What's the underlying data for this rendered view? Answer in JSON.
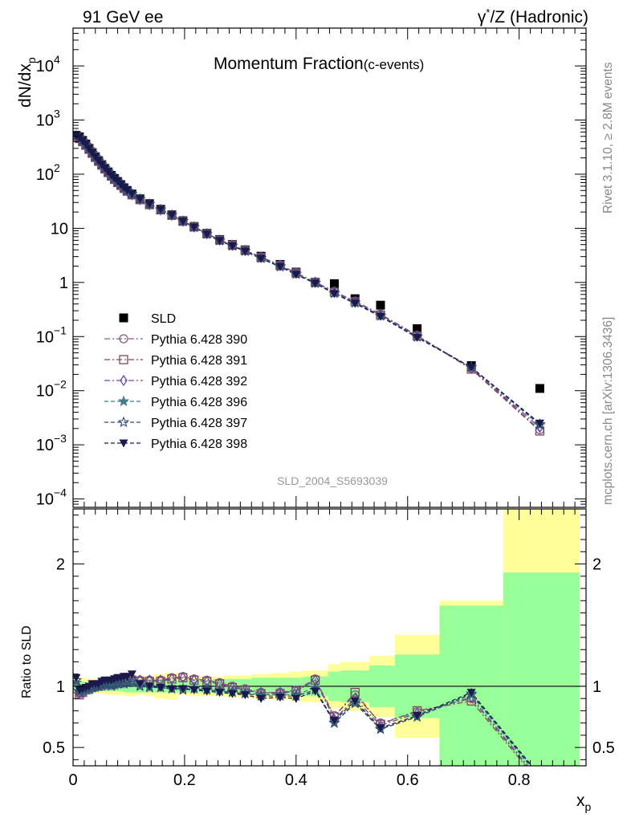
{
  "header": {
    "left": "91 GeV ee",
    "right_base": "γ",
    "right_sup": "*",
    "right_rest": "/Z (Hadronic)"
  },
  "title_main": "Momentum Fraction",
  "title_sub": "(c-events)",
  "ylabel_main": "dN/dx",
  "ylabel_sub": "p",
  "xlabel_main": "x",
  "xlabel_sub": "p",
  "ratio_ylabel": "Ratio to SLD",
  "watermark": "SLD_2004_S5693039",
  "side_text_top": "Rivet 3.1.10, ≥ 2.8M events",
  "side_text_bottom": "mcplots.cern.ch [arXiv:1306.3436]",
  "colors": {
    "data": "#000000",
    "yellow_band": "#ffff99",
    "green_band": "#99ff99",
    "series": [
      "#8b5a83",
      "#7a4a5a",
      "#6a4aa0",
      "#4a7a8a",
      "#2e4a6e",
      "#1a1a4a"
    ]
  },
  "chart_data": [
    {
      "type": "scatter",
      "panel": "main",
      "y_scale": "log",
      "xlim": [
        0,
        0.92
      ],
      "ylim": [
        7e-05,
        50000
      ],
      "y_tick_labels": [
        "10^-4",
        "10^-3",
        "10^-2",
        "10^-1",
        "1",
        "10",
        "10^2",
        "10^3",
        "10^4"
      ],
      "legend_position": "left-middle",
      "x": [
        0.0057,
        0.0114,
        0.0171,
        0.0229,
        0.0286,
        0.0343,
        0.04,
        0.0457,
        0.0514,
        0.0571,
        0.0629,
        0.0686,
        0.0743,
        0.08,
        0.0857,
        0.0914,
        0.0971,
        0.1057,
        0.12,
        0.1371,
        0.1571,
        0.1771,
        0.1971,
        0.2171,
        0.24,
        0.2629,
        0.2857,
        0.3086,
        0.3371,
        0.3714,
        0.4,
        0.4343,
        0.4686,
        0.5057,
        0.5514,
        0.6171,
        0.7143,
        0.8371
      ],
      "series": [
        {
          "name": "SLD",
          "marker": "square-filled",
          "values": [
            520,
            490,
            420,
            360,
            300,
            250,
            210,
            178,
            150,
            128,
            110,
            95,
            83,
            73,
            64,
            56,
            50,
            43,
            35,
            28.5,
            22.5,
            17.8,
            13.8,
            10.8,
            8.1,
            6.2,
            5.0,
            4.0,
            3.05,
            2.15,
            1.55,
            1.0,
            0.95,
            0.5,
            0.38,
            0.14,
            0.029,
            0.011
          ]
        },
        {
          "name": "Pythia 6.428 390",
          "marker": "circle-open",
          "values": [
            505,
            460,
            400,
            345,
            290,
            245,
            205,
            174,
            148,
            126,
            108,
            93,
            81,
            71,
            62.5,
            55,
            49,
            42,
            34,
            27.5,
            22,
            17.5,
            13.6,
            10.7,
            8.0,
            6.1,
            4.9,
            3.95,
            2.95,
            2.1,
            1.5,
            1.02,
            0.68,
            0.45,
            0.26,
            0.105,
            0.026,
            0.0019
          ]
        },
        {
          "name": "Pythia 6.428 391",
          "marker": "square-open",
          "values": [
            500,
            455,
            398,
            342,
            288,
            243,
            204,
            173,
            147,
            125,
            107,
            92,
            80,
            70,
            62,
            54.5,
            48.5,
            41.5,
            33.8,
            27.3,
            21.9,
            17.4,
            13.5,
            10.6,
            7.95,
            6.05,
            4.85,
            3.9,
            2.9,
            2.05,
            1.5,
            1.01,
            0.66,
            0.44,
            0.25,
            0.103,
            0.025,
            0.0018
          ]
        },
        {
          "name": "Pythia 6.428 392",
          "marker": "diamond-open",
          "values": [
            502,
            458,
            399,
            344,
            289,
            244,
            205,
            173.5,
            147.5,
            125.5,
            107.5,
            92.5,
            80.5,
            70.5,
            62,
            54.8,
            48.8,
            41.8,
            33.9,
            27.4,
            21.9,
            17.4,
            13.5,
            10.6,
            7.95,
            6.05,
            4.85,
            3.9,
            2.92,
            2.08,
            1.5,
            1.01,
            0.67,
            0.44,
            0.255,
            0.104,
            0.026,
            0.0021
          ]
        },
        {
          "name": "Pythia 6.428 396",
          "marker": "star-filled",
          "values": [
            515,
            470,
            405,
            350,
            292,
            247,
            207,
            176,
            150,
            128,
            110,
            94,
            82,
            72,
            63,
            55.5,
            49.5,
            42.5,
            34.5,
            27.8,
            22.1,
            17.5,
            13.6,
            10.6,
            7.9,
            6.0,
            4.8,
            3.85,
            2.85,
            2.0,
            1.45,
            0.98,
            0.64,
            0.43,
            0.245,
            0.1,
            0.027,
            0.0023
          ]
        },
        {
          "name": "Pythia 6.428 397",
          "marker": "star-open",
          "values": [
            518,
            472,
            407,
            352,
            293,
            248,
            208,
            177,
            151,
            129,
            111,
            95,
            83,
            73,
            64,
            56,
            50,
            43,
            34.8,
            28,
            22.2,
            17.5,
            13.5,
            10.5,
            7.85,
            5.95,
            4.75,
            3.8,
            2.8,
            1.95,
            1.42,
            0.97,
            0.63,
            0.42,
            0.24,
            0.098,
            0.027,
            0.0024
          ]
        },
        {
          "name": "Pythia 6.428 398",
          "marker": "triangle-down-filled",
          "values": [
            520,
            475,
            410,
            355,
            295,
            250,
            210,
            178,
            152,
            130,
            112,
            96,
            84,
            74,
            65,
            57,
            51,
            43.5,
            35,
            28.2,
            22.3,
            17.6,
            13.5,
            10.5,
            7.8,
            5.9,
            4.7,
            3.75,
            2.75,
            1.95,
            1.4,
            0.96,
            0.62,
            0.41,
            0.235,
            0.096,
            0.027,
            0.0025
          ]
        }
      ]
    },
    {
      "type": "line",
      "panel": "ratio",
      "ylabel": "Ratio to SLD",
      "xlabel": "x_p",
      "xlim": [
        0,
        0.92
      ],
      "ylim": [
        0.35,
        2.45
      ],
      "x_ticks": [
        0,
        0.2,
        0.4,
        0.6,
        0.8
      ],
      "y_ticks": [
        0.5,
        1,
        2
      ],
      "bands": {
        "edges": [
          0,
          0.0114,
          0.0229,
          0.0343,
          0.0457,
          0.0571,
          0.0686,
          0.08,
          0.0914,
          0.1,
          0.1143,
          0.1286,
          0.1457,
          0.1657,
          0.1886,
          0.2057,
          0.2286,
          0.2514,
          0.2743,
          0.2971,
          0.32,
          0.3543,
          0.3886,
          0.4114,
          0.4571,
          0.48,
          0.5314,
          0.5771,
          0.6571,
          0.7714,
          0.9086
        ],
        "yellow_low": [
          0.92,
          0.93,
          0.94,
          0.94,
          0.94,
          0.93,
          0.93,
          0.93,
          0.92,
          0.92,
          0.93,
          0.92,
          0.9,
          0.89,
          0.93,
          0.92,
          0.92,
          0.92,
          0.91,
          0.91,
          0.9,
          0.89,
          0.88,
          0.87,
          0.82,
          0.8,
          0.75,
          0.58,
          0.3,
          0.3
        ],
        "yellow_high": [
          1.08,
          1.07,
          1.06,
          1.06,
          1.06,
          1.07,
          1.07,
          1.07,
          1.08,
          1.08,
          1.08,
          1.08,
          1.1,
          1.11,
          1.08,
          1.08,
          1.08,
          1.08,
          1.09,
          1.09,
          1.1,
          1.11,
          1.12,
          1.13,
          1.18,
          1.2,
          1.25,
          1.42,
          1.7,
          2.6
        ],
        "green_low": [
          0.95,
          0.96,
          0.97,
          0.97,
          0.97,
          0.96,
          0.96,
          0.96,
          0.95,
          0.95,
          0.95,
          0.95,
          0.95,
          0.95,
          0.95,
          0.95,
          0.95,
          0.94,
          0.94,
          0.94,
          0.93,
          0.93,
          0.93,
          0.92,
          0.88,
          0.87,
          0.83,
          0.74,
          0.34,
          0.3
        ],
        "green_high": [
          1.05,
          1.04,
          1.03,
          1.03,
          1.03,
          1.04,
          1.04,
          1.04,
          1.05,
          1.05,
          1.05,
          1.05,
          1.05,
          1.05,
          1.05,
          1.05,
          1.05,
          1.06,
          1.06,
          1.06,
          1.07,
          1.07,
          1.07,
          1.08,
          1.12,
          1.13,
          1.17,
          1.26,
          1.66,
          1.93
        ]
      },
      "x": [
        0.0057,
        0.0114,
        0.0171,
        0.0229,
        0.0286,
        0.0343,
        0.04,
        0.0457,
        0.0514,
        0.0571,
        0.0629,
        0.0686,
        0.0743,
        0.08,
        0.0857,
        0.0914,
        0.0971,
        0.1057,
        0.12,
        0.1371,
        0.1571,
        0.1771,
        0.1971,
        0.2171,
        0.24,
        0.2629,
        0.2857,
        0.3086,
        0.3371,
        0.3714,
        0.4,
        0.4343,
        0.4686,
        0.5057,
        0.5514,
        0.6171,
        0.7143,
        0.8371
      ],
      "series": [
        {
          "name": "Pythia 6.428 390",
          "values": [
            1.0,
            0.94,
            0.95,
            0.98,
            0.99,
            1.0,
            1.0,
            1.01,
            1.02,
            1.03,
            1.02,
            1.02,
            1.03,
            1.04,
            1.04,
            1.05,
            1.05,
            1.06,
            1.05,
            1.05,
            1.05,
            1.07,
            1.08,
            1.06,
            1.05,
            1.03,
            1.0,
            0.98,
            0.95,
            0.95,
            0.97,
            1.06,
            0.76,
            0.93,
            0.7,
            0.79,
            0.9,
            0.22
          ]
        },
        {
          "name": "Pythia 6.428 391",
          "values": [
            0.98,
            0.93,
            0.95,
            0.97,
            0.98,
            0.99,
            1.0,
            1.0,
            1.01,
            1.02,
            1.01,
            1.01,
            1.02,
            1.03,
            1.04,
            1.04,
            1.04,
            1.05,
            1.04,
            1.04,
            1.04,
            1.06,
            1.07,
            1.05,
            1.04,
            1.02,
            0.99,
            0.97,
            0.94,
            0.94,
            0.96,
            1.05,
            0.75,
            0.95,
            0.69,
            0.8,
            0.88,
            0.21
          ]
        },
        {
          "name": "Pythia 6.428 392",
          "values": [
            0.99,
            0.94,
            0.95,
            0.97,
            0.99,
            1.0,
            1.0,
            1.01,
            1.02,
            1.02,
            1.02,
            1.02,
            1.03,
            1.03,
            1.04,
            1.04,
            1.05,
            1.05,
            1.05,
            1.05,
            1.05,
            1.06,
            1.07,
            1.05,
            1.04,
            1.02,
            0.99,
            0.97,
            0.95,
            0.95,
            0.96,
            1.05,
            0.73,
            0.9,
            0.68,
            0.78,
            0.91,
            0.23
          ]
        },
        {
          "name": "Pythia 6.428 396",
          "values": [
            1.03,
            0.96,
            0.96,
            0.97,
            0.97,
            0.99,
            0.99,
            1.0,
            1.0,
            1.01,
            1.01,
            1.0,
            1.01,
            1.02,
            1.02,
            1.02,
            1.03,
            1.03,
            1.01,
            1.0,
            0.99,
            0.98,
            0.98,
            0.99,
            0.98,
            0.97,
            0.96,
            0.95,
            0.93,
            0.93,
            0.93,
            0.99,
            0.7,
            0.87,
            0.65,
            0.75,
            0.93,
            0.25
          ]
        },
        {
          "name": "Pythia 6.428 397",
          "values": [
            1.05,
            0.96,
            0.97,
            0.98,
            0.98,
            0.99,
            1.0,
            1.0,
            1.01,
            1.02,
            1.02,
            1.01,
            1.02,
            1.02,
            1.03,
            1.02,
            1.03,
            1.04,
            1.0,
            0.99,
            0.99,
            0.98,
            0.97,
            0.98,
            0.97,
            0.96,
            0.95,
            0.94,
            0.92,
            0.92,
            0.92,
            0.97,
            0.7,
            0.86,
            0.65,
            0.75,
            0.94,
            0.26
          ]
        },
        {
          "name": "Pythia 6.428 398",
          "values": [
            1.07,
            0.97,
            0.98,
            0.99,
            1.0,
            1.02,
            1.02,
            1.02,
            1.04,
            1.05,
            1.05,
            1.05,
            1.06,
            1.07,
            1.07,
            1.08,
            1.08,
            1.1,
            1.02,
            1.0,
            0.99,
            0.98,
            0.98,
            0.97,
            0.96,
            0.95,
            0.94,
            0.93,
            0.9,
            0.91,
            0.9,
            0.96,
            0.72,
            0.88,
            0.66,
            0.76,
            0.95,
            0.27
          ]
        }
      ]
    }
  ]
}
